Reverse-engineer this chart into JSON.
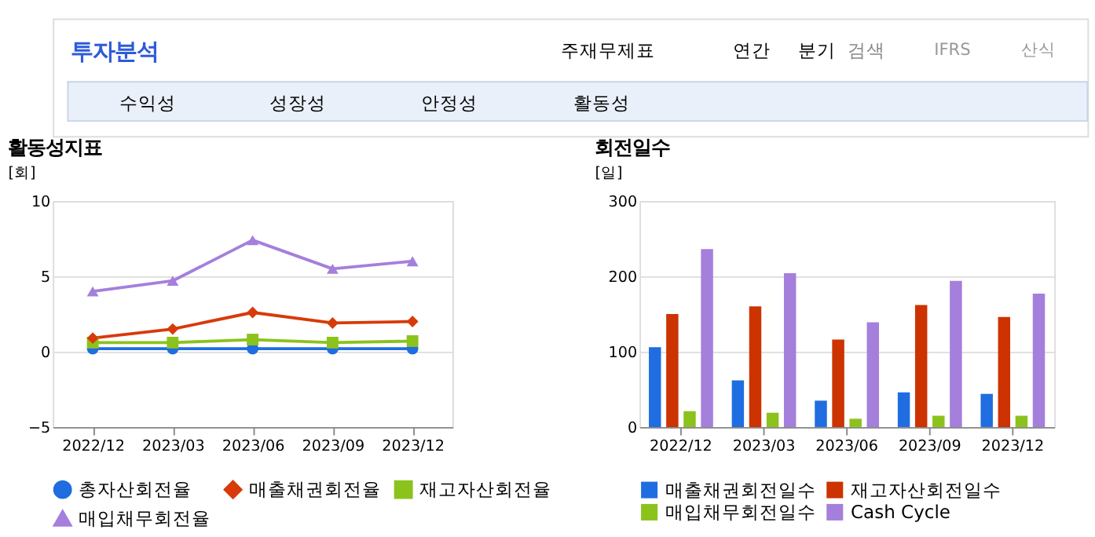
{
  "chart_data": [
    {
      "type": "other",
      "annotations": [
        "투자분석",
        "주재무제표",
        "연간",
        "분기",
        "검색",
        "IFRS",
        "산식",
        "수익성",
        "성장성",
        "안정성",
        "활동성"
      ]
    },
    {
      "type": "line",
      "title": "활동성지표",
      "ylabel": "[회]",
      "categories": [
        "2022/12",
        "2023/03",
        "2023/06",
        "2023/09",
        "2023/12"
      ],
      "ylim": [
        -5,
        10
      ],
      "yticks": [
        -5,
        0,
        5,
        10
      ],
      "grid": "y",
      "legend": "bottom",
      "series": [
        {
          "name": "총자산회전율",
          "color": "#1f6de0",
          "marker": "circle",
          "values": [
            0.2,
            0.2,
            0.2,
            0.2,
            0.2
          ]
        },
        {
          "name": "매출채권회전율",
          "color": "#d83a0a",
          "marker": "diamond",
          "values": [
            0.9,
            1.5,
            2.6,
            1.9,
            2.0
          ]
        },
        {
          "name": "재고자산회전율",
          "color": "#8cc21c",
          "marker": "square",
          "values": [
            0.6,
            0.6,
            0.8,
            0.6,
            0.7
          ]
        },
        {
          "name": "매입채무회전율",
          "color": "#a57fdc",
          "marker": "triangle",
          "values": [
            4.0,
            4.7,
            7.4,
            5.5,
            6.0
          ]
        }
      ]
    },
    {
      "type": "bar",
      "title": "회전일수",
      "ylabel": "[일]",
      "categories": [
        "2022/12",
        "2023/03",
        "2023/06",
        "2023/09",
        "2023/12"
      ],
      "ylim": [
        0,
        300
      ],
      "yticks": [
        0,
        100,
        200,
        300
      ],
      "grid": "y",
      "legend": "bottom",
      "series": [
        {
          "name": "매출채권회전일수",
          "color": "#1f6de0",
          "values": [
            106,
            62,
            35,
            46,
            44
          ]
        },
        {
          "name": "재고자산회전일수",
          "color": "#cc3300",
          "values": [
            150,
            160,
            116,
            162,
            146
          ]
        },
        {
          "name": "매입채무회전일수",
          "color": "#8cc21c",
          "values": [
            21,
            19,
            11,
            15,
            15
          ]
        },
        {
          "name": "Cash Cycle",
          "color": "#a57fdc",
          "values": [
            236,
            204,
            139,
            194,
            177
          ]
        }
      ]
    }
  ]
}
